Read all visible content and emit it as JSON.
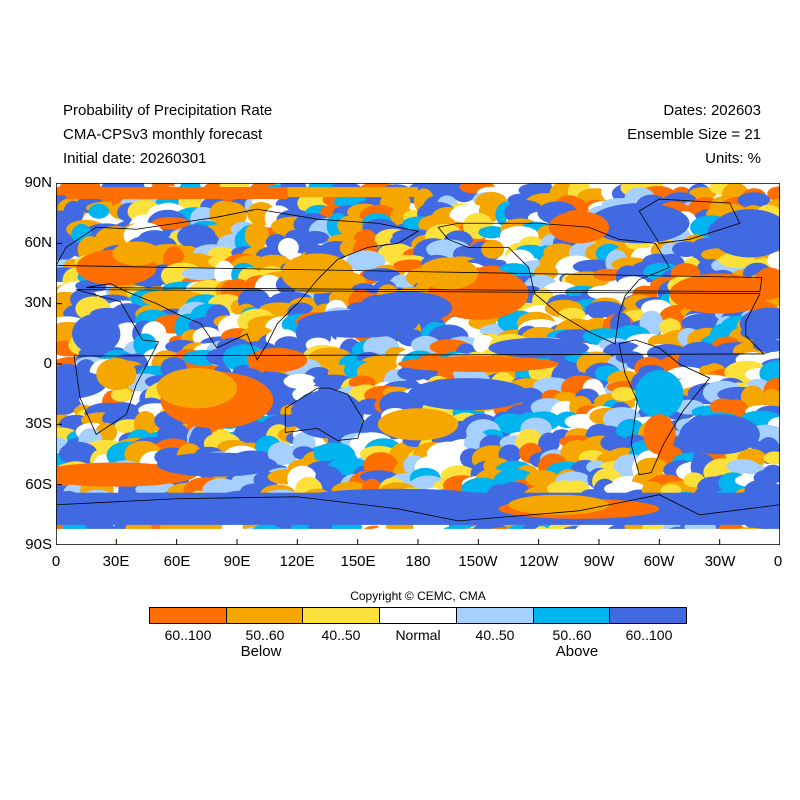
{
  "header": {
    "title_line1": "Probability of Precipitation Rate",
    "title_line2": "CMA-CPSv3 monthly forecast",
    "title_line3": "Initial date: 20260301",
    "dates": "Dates: 202603",
    "ensemble": "Ensemble Size = 21",
    "units": "Units: %"
  },
  "axes": {
    "lat_labels": [
      "90N",
      "60N",
      "30N",
      "0",
      "30S",
      "60S",
      "90S"
    ],
    "lon_labels": [
      "0",
      "30E",
      "60E",
      "90E",
      "120E",
      "150E",
      "180",
      "150W",
      "120W",
      "90W",
      "60W",
      "30W",
      "0"
    ]
  },
  "colors": {
    "below_60_100": "#ff6e00",
    "below_50_60": "#f5a700",
    "below_40_50": "#fde03a",
    "normal": "#ffffff",
    "above_40_50": "#a6d0ff",
    "above_50_60": "#00b4f0",
    "above_60_100": "#4169e1"
  },
  "colorbar": {
    "boxes": [
      "#ff6e00",
      "#f5a700",
      "#fde03a",
      "#ffffff",
      "#a6d0ff",
      "#00b4f0",
      "#4169e1"
    ],
    "labels": [
      "60..100",
      "50..60",
      "40..50",
      "Normal",
      "40..50",
      "50..60",
      "60..100"
    ],
    "below_label": "Below",
    "above_label": "Above"
  },
  "copyright": "Copyright © CEMC, CMA"
}
